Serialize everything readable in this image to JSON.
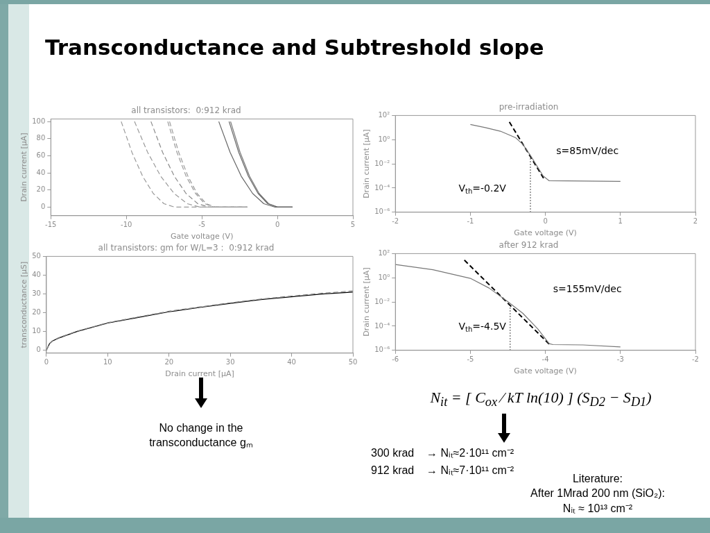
{
  "chart_data": [
    {
      "type": "line",
      "title": "all transistors:  0:912 krad",
      "xlabel": "Gate voltage (V)",
      "ylabel": "Drain current [μA]",
      "xlim": [
        -15,
        5
      ],
      "xticks": [
        -15,
        -10,
        -5,
        0,
        5
      ],
      "ylim": [
        -10,
        103
      ],
      "yticks": [
        0,
        20,
        40,
        60,
        80,
        100
      ],
      "grid": false,
      "marker": "none",
      "series": [
        {
          "color": "#9a9a9a",
          "line_style": "dashed",
          "x": [
            -10.34,
            -9.63,
            -8.92,
            -8.22,
            -7.51,
            -6.8,
            -2
          ],
          "values": [
            100,
            64,
            36,
            16,
            4,
            0,
            0
          ]
        },
        {
          "color": "#9a9a9a",
          "line_style": "dashed",
          "x": [
            -9.46,
            -8.59,
            -7.72,
            -6.84,
            -5.97,
            -5.1,
            -2
          ],
          "values": [
            100,
            64,
            36,
            16,
            4,
            0,
            0
          ]
        },
        {
          "color": "#8a8a8a",
          "line_style": "dashed",
          "x": [
            -8.37,
            -7.6,
            -6.82,
            -6.05,
            -5.27,
            -4.5,
            -2
          ],
          "values": [
            100,
            64,
            36,
            16,
            4,
            0,
            0
          ]
        },
        {
          "color": "#9a9a9a",
          "line_style": "dashed",
          "x": [
            -7.26,
            -6.65,
            -6.04,
            -5.42,
            -4.81,
            -4.2,
            -2
          ],
          "values": [
            100,
            64,
            36,
            16,
            4,
            0,
            0
          ]
        },
        {
          "color": "#9a9a9a",
          "line_style": "dashed",
          "x": [
            -7.14,
            -6.53,
            -5.92,
            -5.32,
            -4.71,
            -4.1,
            -2
          ],
          "values": [
            100,
            64,
            36,
            16,
            4,
            0,
            0
          ]
        },
        {
          "color": "#666666",
          "line_style": "solid",
          "x": [
            -3.88,
            -3.13,
            -2.39,
            -1.64,
            -0.9,
            -0.15,
            1
          ],
          "values": [
            100,
            64,
            36,
            16,
            4,
            0,
            0
          ]
        },
        {
          "color": "#666666",
          "line_style": "solid",
          "x": [
            -3.2,
            -2.56,
            -1.92,
            -1.28,
            -0.64,
            0,
            1
          ],
          "values": [
            100,
            64,
            36,
            16,
            4,
            0,
            0
          ]
        },
        {
          "color": "#777777",
          "line_style": "solid",
          "x": [
            -3.1,
            -2.47,
            -1.84,
            -1.21,
            -0.58,
            0.05,
            1
          ],
          "values": [
            100,
            64,
            36,
            16,
            4,
            0,
            0
          ]
        }
      ]
    },
    {
      "type": "line",
      "title": "all transistors: gm for W/L=3 :  0:912 krad",
      "xlabel": "Drain current [μA]",
      "ylabel": "transconductance [μS]",
      "xlim": [
        0,
        50
      ],
      "xticks": [
        0,
        10,
        20,
        30,
        40,
        50
      ],
      "ylim": [
        -1.5,
        50
      ],
      "yticks": [
        0,
        10,
        20,
        30,
        40,
        50
      ],
      "grid": false,
      "marker": "none",
      "series": [
        {
          "color": "#888888",
          "line_style": "dashed",
          "x": [
            0,
            0.5,
            1,
            2,
            5,
            10,
            15,
            20,
            25,
            30,
            35,
            40,
            45,
            50
          ],
          "values": [
            0,
            3.6,
            5.1,
            6.7,
            10.2,
            14.7,
            17.8,
            20.8,
            23.1,
            25.3,
            27.3,
            28.9,
            30.4,
            31.6
          ]
        },
        {
          "color": "#000000",
          "line_style": "solid",
          "x": [
            0,
            0.5,
            1,
            2,
            5,
            10,
            15,
            20,
            25,
            30,
            35,
            40,
            45,
            50
          ],
          "values": [
            0,
            3.5,
            5,
            6.5,
            10,
            14.5,
            17.5,
            20.5,
            22.8,
            25,
            27,
            28.5,
            30,
            31
          ]
        }
      ]
    },
    {
      "type": "line",
      "title": "pre-irradiation",
      "xlabel": "Gate voltage (V)",
      "ylabel": "Drain current [μA]",
      "log": "y",
      "xlim": [
        -2,
        2
      ],
      "xticks": [
        -2,
        -1,
        0,
        1,
        2
      ],
      "ylim": [
        1e-06,
        100
      ],
      "yticks": [
        {
          "value": 1e-06,
          "label": "10⁻⁶"
        },
        {
          "value": 0.0001,
          "label": "10⁻⁴"
        },
        {
          "value": 0.01,
          "label": "10⁻²"
        },
        {
          "value": 1,
          "label": "10⁰"
        },
        {
          "value": 100,
          "label": "10²"
        }
      ],
      "grid": false,
      "marker": "none",
      "series": [
        {
          "color": "#777777",
          "line_style": "solid",
          "x": [
            -1,
            -0.8,
            -0.6,
            -0.4,
            -0.3,
            -0.2,
            -0.1,
            -0.03,
            0.05,
            1
          ],
          "values": [
            18,
            10,
            5,
            1.5,
            0.4,
            0.05,
            0.005,
            0.001,
            0.0004,
            0.00035
          ]
        },
        {
          "color": "#000000",
          "line_style": "dashed",
          "x": [
            -0.48,
            -0.025
          ],
          "values": [
            29,
            0.00066
          ]
        },
        {
          "color": "#333333",
          "line_style": "dotted",
          "x": [
            -0.2,
            -0.2
          ],
          "values": [
            1e-06,
            0.036
          ]
        }
      ],
      "annotations": [
        "s=85mV/dec",
        "V$_{th}$=-0.2V"
      ]
    },
    {
      "type": "line",
      "title": "after 912 krad",
      "xlabel": "Gate voltage (V)",
      "ylabel": "Drain current [μA]",
      "log": "y",
      "xlim": [
        -6,
        -2
      ],
      "xticks": [
        -6,
        -5,
        -4,
        -3,
        -2
      ],
      "ylim": [
        1e-06,
        100
      ],
      "yticks": [
        {
          "value": 1e-06,
          "label": "10⁻⁶"
        },
        {
          "value": 0.0001,
          "label": "10⁻⁴"
        },
        {
          "value": 0.01,
          "label": "10⁻²"
        },
        {
          "value": 1,
          "label": "10⁰"
        },
        {
          "value": 100,
          "label": "10²"
        }
      ],
      "grid": false,
      "marker": "none",
      "series": [
        {
          "color": "#777777",
          "line_style": "solid",
          "x": [
            -6,
            -5.5,
            -5,
            -4.75,
            -4.5,
            -4.3,
            -4.1,
            -3.95,
            -3.9,
            -3.5,
            -3
          ],
          "values": [
            12.6,
            4.6,
            0.9,
            0.14,
            0.0105,
            0.00115,
            5.8e-05,
            3.6e-06,
            3e-06,
            2.8e-06,
            1.9e-06
          ]
        },
        {
          "color": "#000000",
          "line_style": "dashed",
          "x": [
            -5.08,
            -3.95
          ],
          "values": [
            29,
            3.3e-06
          ]
        },
        {
          "color": "#333333",
          "line_style": "dotted",
          "x": [
            -4.47,
            -4.47
          ],
          "values": [
            1e-06,
            0.004
          ]
        }
      ],
      "annotations": [
        "s=155mV/dec",
        "V$_{th}$=-4.5V"
      ]
    },
    {
      "type": "other",
      "title": "Transconductance and Subtreshold slope",
      "annotations": [
        "No change in the transconductance gₘ",
        "N$_{it}$ = [ C$_{ox}$ ⁄ kT ln(10) ] (S$_{D2}$ − S$_{D1}$)",
        "300 krad    → Nᵢₜ≈2·10¹¹ cm⁻²",
        "912 krad    → Nᵢₜ≈7·10¹¹ cm⁻²",
        "Literature:",
        "After 1Mrad 200 nm (SiO₂):",
        "Nᵢₜ ≈ 10¹³ cm⁻²"
      ]
    }
  ]
}
